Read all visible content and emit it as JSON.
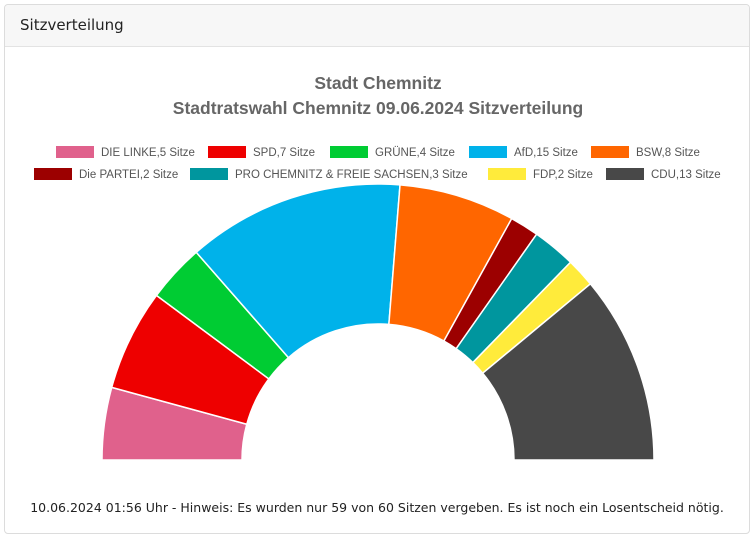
{
  "panel": {
    "header": "Sitzverteilung",
    "footer_note": "10.06.2024 01:56 Uhr - Hinweis: Es wurden nur 59 von 60 Sitzen vergeben. Es ist noch ein Losentscheid nötig."
  },
  "chart_data": {
    "type": "pie",
    "variant": "half-donut (parliament)",
    "title": "Stadt Chemnitz",
    "subtitle": "Stadtratswahl Chemnitz 09.06.2024 Sitzverteilung",
    "legend_position": "top",
    "series": [
      {
        "name": "DIE LINKE,5 Sitze",
        "value": 5,
        "color": "#e0618c"
      },
      {
        "name": "SPD,7 Sitze",
        "value": 7,
        "color": "#ee0000"
      },
      {
        "name": "GRÜNE,4 Sitze",
        "value": 4,
        "color": "#00cc33"
      },
      {
        "name": "AfD,15 Sitze",
        "value": 15,
        "color": "#00b2ea"
      },
      {
        "name": "BSW,8 Sitze",
        "value": 8,
        "color": "#ff6600"
      },
      {
        "name": "Die PARTEI,2 Sitze",
        "value": 2,
        "color": "#9c0000"
      },
      {
        "name": "PRO CHEMNITZ & FREIE SACHSEN,3 Sitze",
        "value": 3,
        "color": "#00969e"
      },
      {
        "name": "FDP,2 Sitze",
        "value": 2,
        "color": "#ffeb3b"
      },
      {
        "name": "CDU,13 Sitze",
        "value": 13,
        "color": "#484848"
      }
    ]
  }
}
